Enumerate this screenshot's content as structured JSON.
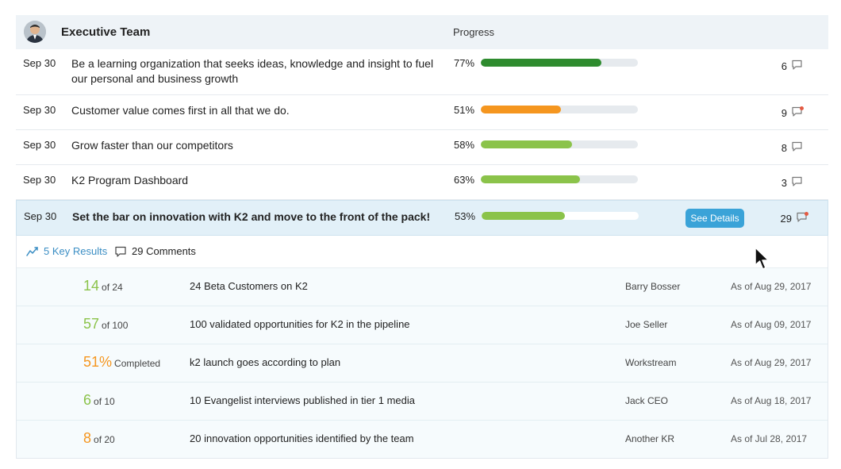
{
  "header": {
    "team_name": "Executive Team",
    "progress_label": "Progress"
  },
  "colors": {
    "dark_green": "#2e8b2e",
    "light_green": "#8bc34a",
    "orange": "#f5961f",
    "link_blue": "#3b8ec4",
    "button_blue": "#3aa3d8",
    "badge_red": "#e45a42"
  },
  "objectives": [
    {
      "date": "Sep 30",
      "title": "Be a learning organization that seeks ideas, knowledge and insight to fuel our personal and business growth",
      "progress_label": "77%",
      "progress": 0.77,
      "bar_color": "#2e8b2e",
      "comments": "6",
      "unread": false
    },
    {
      "date": "Sep 30",
      "title": "Customer value comes first in all that we do.",
      "progress_label": "51%",
      "progress": 0.51,
      "bar_color": "#f5961f",
      "comments": "9",
      "unread": true
    },
    {
      "date": "Sep 30",
      "title": "Grow faster than our competitors",
      "progress_label": "58%",
      "progress": 0.58,
      "bar_color": "#8bc34a",
      "comments": "8",
      "unread": false
    },
    {
      "date": "Sep 30",
      "title": "K2 Program Dashboard",
      "progress_label": "63%",
      "progress": 0.63,
      "bar_color": "#8bc34a",
      "comments": "3",
      "unread": false
    }
  ],
  "selected": {
    "date": "Sep 30",
    "title": "Set the bar on innovation with K2 and move to the front of the pack!",
    "progress_label": "53%",
    "progress": 0.53,
    "bar_color": "#8bc34a",
    "see_details_label": "See Details",
    "comments": "29",
    "unread": true
  },
  "details": {
    "key_results_label": "5 Key Results",
    "comments_label": "29 Comments"
  },
  "key_results": [
    {
      "value": "14",
      "suffix": "of 24",
      "color": "#8bc34a",
      "name": "24 Beta Customers on K2",
      "owner": "Barry Bosser",
      "as_of": "As of Aug 29, 2017"
    },
    {
      "value": "57",
      "suffix": "of 100",
      "color": "#8bc34a",
      "name": "100 validated opportunities for K2 in the pipeline",
      "owner": "Joe Seller",
      "as_of": "As of Aug 09, 2017"
    },
    {
      "value": "51%",
      "suffix": "Completed",
      "color": "#f5961f",
      "name": "k2 launch goes according to plan",
      "owner": "Workstream",
      "as_of": "As of Aug 29, 2017"
    },
    {
      "value": "6",
      "suffix": "of 10",
      "color": "#8bc34a",
      "name": "10 Evangelist interviews published in tier 1 media",
      "owner": "Jack CEO",
      "as_of": "As of Aug 18, 2017"
    },
    {
      "value": "8",
      "suffix": "of 20",
      "color": "#f5961f",
      "name": "20 innovation opportunities identified by the team",
      "owner": "Another KR",
      "as_of": "As of Jul 28, 2017"
    }
  ]
}
